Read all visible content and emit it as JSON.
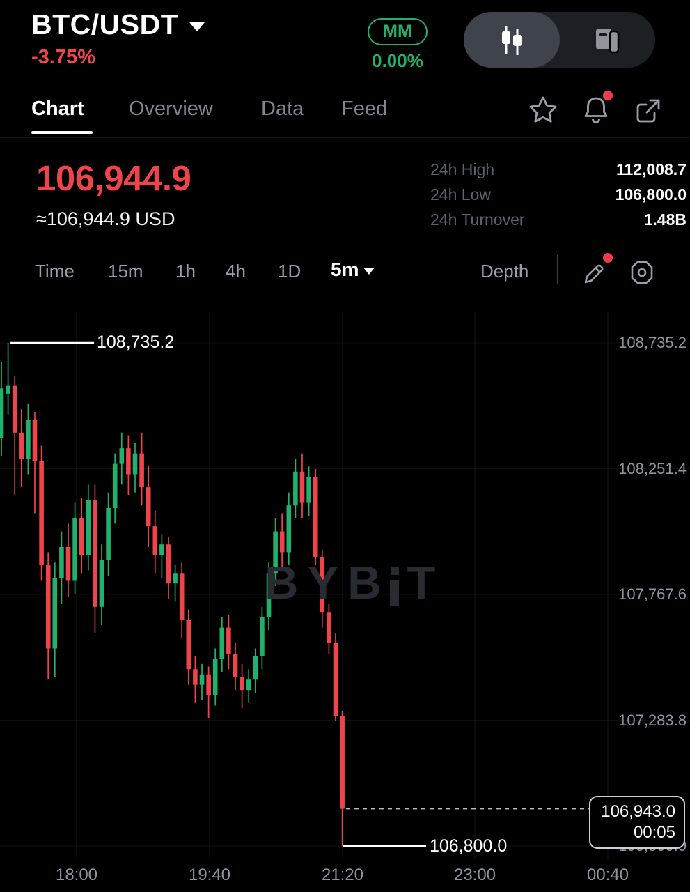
{
  "header": {
    "symbol": "BTC/USDT",
    "change_pct": "-3.75%",
    "mm_badge": "MM",
    "mm_change": "0.00%"
  },
  "tabs": {
    "items": [
      "Chart",
      "Overview",
      "Data",
      "Feed"
    ],
    "active": "Chart"
  },
  "price_panel": {
    "last_price": "106,944.9",
    "approx_usd": "≈106,944.9 USD",
    "stats": [
      {
        "label": "24h High",
        "value": "112,008.7"
      },
      {
        "label": "24h Low",
        "value": "106,800.0"
      },
      {
        "label": "24h Turnover",
        "value": "1.48B"
      }
    ]
  },
  "toolbar": {
    "timeframes": [
      "Time",
      "15m",
      "1h",
      "4h",
      "1D"
    ],
    "selected_timeframe": "5m",
    "depth_label": "Depth"
  },
  "watermark": "BYBIT",
  "colors": {
    "up": "#20b26c",
    "down": "#ef454a",
    "accent_red": "#ef454a",
    "accent_green": "#20b26c",
    "notification_dot": "#f03c4c"
  },
  "chart_data": {
    "type": "candlestick",
    "symbol": "BTC/USDT",
    "interval": "5m",
    "y_axis": {
      "labels": [
        "108,735.2",
        "108,251.4",
        "107,767.6",
        "107,283.8",
        "106,800.0"
      ],
      "values": [
        108735.2,
        108251.4,
        107767.6,
        107283.8,
        106800.0
      ]
    },
    "x_axis": {
      "labels": [
        "18:00",
        "19:40",
        "21:20",
        "23:00",
        "00:40"
      ]
    },
    "high_marker": {
      "label": "108,735.2",
      "value": 108735.2
    },
    "low_marker": {
      "label": "106,800.0",
      "value": 106800.0
    },
    "current_price": {
      "label": "106,943.0",
      "value": 106943.0,
      "countdown": "00:05"
    },
    "candles": [
      [
        108370,
        108660,
        108300,
        108560
      ],
      [
        108540,
        108735.2,
        108460,
        108570
      ],
      [
        108570,
        108610,
        108150,
        108390
      ],
      [
        108390,
        108480,
        108180,
        108290
      ],
      [
        108290,
        108500,
        108230,
        108440
      ],
      [
        108440,
        108470,
        108080,
        108280
      ],
      [
        108280,
        108340,
        107820,
        107880
      ],
      [
        107880,
        107930,
        107440,
        107560
      ],
      [
        107560,
        107890,
        107450,
        107830
      ],
      [
        107830,
        108010,
        107730,
        107950
      ],
      [
        107950,
        108040,
        107760,
        107820
      ],
      [
        107820,
        108120,
        107770,
        108060
      ],
      [
        108060,
        108140,
        107850,
        107920
      ],
      [
        107920,
        108190,
        107860,
        108130
      ],
      [
        108130,
        108190,
        107620,
        107720
      ],
      [
        107720,
        107960,
        107650,
        107900
      ],
      [
        107900,
        108160,
        107840,
        108100
      ],
      [
        108100,
        108310,
        108040,
        108270
      ],
      [
        108270,
        108390,
        108190,
        108330
      ],
      [
        108330,
        108380,
        108150,
        108230
      ],
      [
        108230,
        108350,
        108160,
        108310
      ],
      [
        108310,
        108390,
        108110,
        108180
      ],
      [
        108180,
        108260,
        107950,
        108030
      ],
      [
        108030,
        108090,
        107850,
        107920
      ],
      [
        107920,
        108000,
        107830,
        107960
      ],
      [
        107960,
        107990,
        107750,
        107810
      ],
      [
        107810,
        107880,
        107740,
        107850
      ],
      [
        107850,
        107890,
        107600,
        107670
      ],
      [
        107670,
        107710,
        107420,
        107480
      ],
      [
        107480,
        107530,
        107350,
        107420
      ],
      [
        107420,
        107500,
        107360,
        107460
      ],
      [
        107460,
        107490,
        107293,
        107380
      ],
      [
        107380,
        107560,
        107340,
        107520
      ],
      [
        107520,
        107680,
        107470,
        107640
      ],
      [
        107640,
        107690,
        107480,
        107540
      ],
      [
        107540,
        107580,
        107400,
        107450
      ],
      [
        107450,
        107500,
        107330,
        107400
      ],
      [
        107400,
        107480,
        107350,
        107440
      ],
      [
        107440,
        107560,
        107390,
        107530
      ],
      [
        107530,
        107720,
        107480,
        107680
      ],
      [
        107680,
        107890,
        107630,
        107850
      ],
      [
        107850,
        108060,
        107800,
        108010
      ],
      [
        108010,
        108080,
        107870,
        107930
      ],
      [
        107930,
        108160,
        107880,
        108110
      ],
      [
        108110,
        108290,
        108060,
        108240
      ],
      [
        108240,
        108310,
        108060,
        108120
      ],
      [
        108120,
        108260,
        108070,
        108220
      ],
      [
        108220,
        108250,
        107880,
        107910
      ],
      [
        107910,
        107940,
        107640,
        107700
      ],
      [
        107700,
        107730,
        107540,
        107580
      ],
      [
        107580,
        107620,
        107280,
        107300
      ],
      [
        107300,
        107320,
        106800,
        106943
      ]
    ]
  }
}
